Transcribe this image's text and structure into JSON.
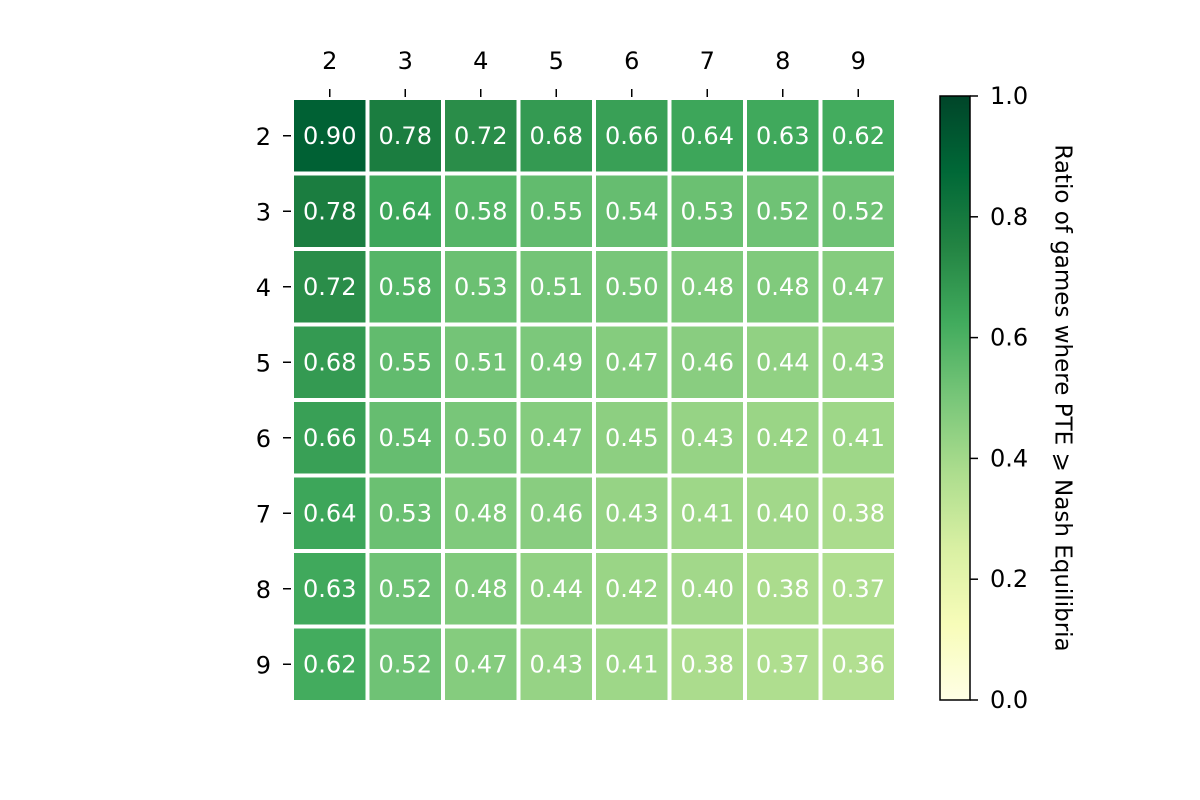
{
  "chart_data": {
    "type": "heatmap",
    "x_categories": [
      "2",
      "3",
      "4",
      "5",
      "6",
      "7",
      "8",
      "9"
    ],
    "y_categories": [
      "2",
      "3",
      "4",
      "5",
      "6",
      "7",
      "8",
      "9"
    ],
    "values": [
      [
        0.9,
        0.78,
        0.72,
        0.68,
        0.66,
        0.64,
        0.63,
        0.62
      ],
      [
        0.78,
        0.64,
        0.58,
        0.55,
        0.54,
        0.53,
        0.52,
        0.52
      ],
      [
        0.72,
        0.58,
        0.53,
        0.51,
        0.5,
        0.48,
        0.48,
        0.47
      ],
      [
        0.68,
        0.55,
        0.51,
        0.49,
        0.47,
        0.46,
        0.44,
        0.43
      ],
      [
        0.66,
        0.54,
        0.5,
        0.47,
        0.45,
        0.43,
        0.42,
        0.41
      ],
      [
        0.64,
        0.53,
        0.48,
        0.46,
        0.43,
        0.41,
        0.4,
        0.38
      ],
      [
        0.63,
        0.52,
        0.48,
        0.44,
        0.42,
        0.4,
        0.38,
        0.37
      ],
      [
        0.62,
        0.52,
        0.47,
        0.43,
        0.41,
        0.38,
        0.37,
        0.36
      ]
    ],
    "value_labels": [
      [
        "0.90",
        "0.78",
        "0.72",
        "0.68",
        "0.66",
        "0.64",
        "0.63",
        "0.62"
      ],
      [
        "0.78",
        "0.64",
        "0.58",
        "0.55",
        "0.54",
        "0.53",
        "0.52",
        "0.52"
      ],
      [
        "0.72",
        "0.58",
        "0.53",
        "0.51",
        "0.50",
        "0.48",
        "0.48",
        "0.47"
      ],
      [
        "0.68",
        "0.55",
        "0.51",
        "0.49",
        "0.47",
        "0.46",
        "0.44",
        "0.43"
      ],
      [
        "0.66",
        "0.54",
        "0.50",
        "0.47",
        "0.45",
        "0.43",
        "0.42",
        "0.41"
      ],
      [
        "0.64",
        "0.53",
        "0.48",
        "0.46",
        "0.43",
        "0.41",
        "0.40",
        "0.38"
      ],
      [
        "0.63",
        "0.52",
        "0.48",
        "0.44",
        "0.42",
        "0.40",
        "0.38",
        "0.37"
      ],
      [
        "0.62",
        "0.52",
        "0.47",
        "0.43",
        "0.41",
        "0.38",
        "0.37",
        "0.36"
      ]
    ],
    "x_axis_position": "top",
    "colorbar": {
      "label": "Ratio of games where PTE ⩾ Nash Equilibria",
      "range": [
        0.0,
        1.0
      ],
      "ticks": [
        "0.0",
        "0.2",
        "0.4",
        "0.6",
        "0.8",
        "1.0"
      ],
      "colormap": "YlGn",
      "colormap_stops": [
        "#ffffe5",
        "#f7fcb9",
        "#d9f0a3",
        "#addd8e",
        "#78c679",
        "#41ab5d",
        "#238443",
        "#006837",
        "#004529"
      ]
    },
    "cell_text_color": "#ffffff",
    "grid": false
  }
}
